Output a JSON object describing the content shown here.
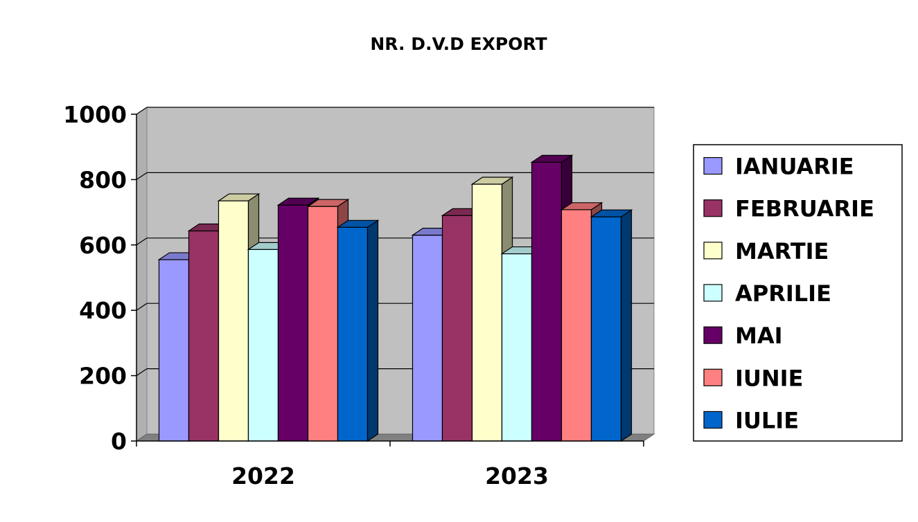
{
  "chart_data": {
    "type": "bar",
    "title": "NR. D.V.D EXPORT",
    "categories": [
      "2022",
      "2023"
    ],
    "series": [
      {
        "name": "IANUARIE",
        "values": [
          555,
          630
        ],
        "color": "#9999FF"
      },
      {
        "name": "FEBRUARIE",
        "values": [
          643,
          690
        ],
        "color": "#993366"
      },
      {
        "name": "MARTIE",
        "values": [
          735,
          786
        ],
        "color": "#FFFFCC"
      },
      {
        "name": "APRILIE",
        "values": [
          586,
          573
        ],
        "color": "#CCFFFF"
      },
      {
        "name": "MAI",
        "values": [
          722,
          853
        ],
        "color": "#660066"
      },
      {
        "name": "IUNIE",
        "values": [
          718,
          708
        ],
        "color": "#FF8080"
      },
      {
        "name": "IULIE",
        "values": [
          654,
          686
        ],
        "color": "#0066CC"
      }
    ],
    "yticks": [
      0,
      200,
      400,
      600,
      800,
      1000
    ],
    "ylim": [
      0,
      1000
    ],
    "grid": true,
    "legend_position": "right",
    "plot_background": "#C0C0C0",
    "style": "3d-clustered-column"
  }
}
